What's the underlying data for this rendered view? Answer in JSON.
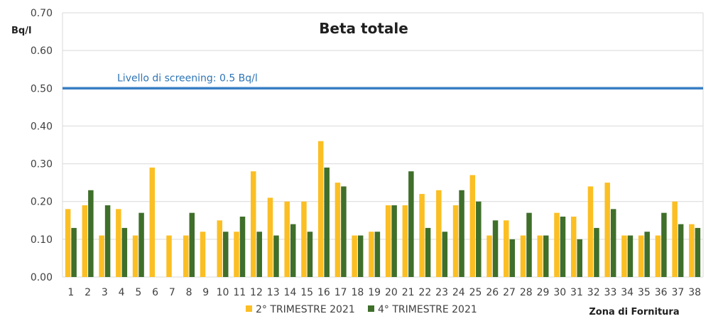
{
  "chart_data": {
    "type": "bar",
    "title": "Beta totale",
    "ylabel": "Bq/l",
    "xlabel": "Zona di Fornitura",
    "ylim": [
      0,
      0.7
    ],
    "yticks": [
      "0.00",
      "0.10",
      "0.20",
      "0.30",
      "0.40",
      "0.50",
      "0.60",
      "0.70"
    ],
    "categories": [
      "1",
      "2",
      "3",
      "4",
      "5",
      "6",
      "7",
      "8",
      "9",
      "10",
      "11",
      "12",
      "13",
      "14",
      "15",
      "16",
      "17",
      "18",
      "19",
      "20",
      "21",
      "22",
      "23",
      "24",
      "25",
      "26",
      "27",
      "28",
      "29",
      "30",
      "31",
      "32",
      "33",
      "34",
      "35",
      "36",
      "37",
      "38"
    ],
    "series": [
      {
        "name": "2° TRIMESTRE 2021",
        "color": "#fbbf24",
        "values": [
          0.18,
          0.19,
          0.11,
          0.18,
          0.11,
          0.29,
          0.11,
          0.11,
          0.12,
          0.15,
          0.12,
          0.28,
          0.21,
          0.2,
          0.2,
          0.36,
          0.25,
          0.11,
          0.12,
          0.19,
          0.19,
          0.22,
          0.23,
          0.19,
          0.27,
          0.11,
          0.15,
          0.11,
          0.11,
          0.17,
          0.16,
          0.24,
          0.25,
          0.11,
          0.11,
          0.11,
          0.2,
          0.14
        ]
      },
      {
        "name": "4° TRIMESTRE 2021",
        "color": "#3f6f2a",
        "values": [
          0.13,
          0.23,
          0.19,
          0.13,
          0.17,
          null,
          null,
          0.17,
          null,
          0.12,
          0.16,
          0.12,
          0.11,
          0.14,
          0.12,
          0.29,
          0.24,
          0.11,
          0.12,
          0.19,
          0.28,
          0.13,
          0.12,
          0.23,
          0.2,
          0.15,
          0.1,
          0.17,
          0.11,
          0.16,
          0.1,
          0.13,
          0.18,
          0.11,
          0.12,
          0.17,
          0.14,
          0.13
        ]
      }
    ],
    "reference_line": {
      "value": 0.5,
      "label": "Livello di screening: 0.5 Bq/l",
      "color": "#3a7fc4"
    },
    "grid": true,
    "legend": "bottom"
  }
}
